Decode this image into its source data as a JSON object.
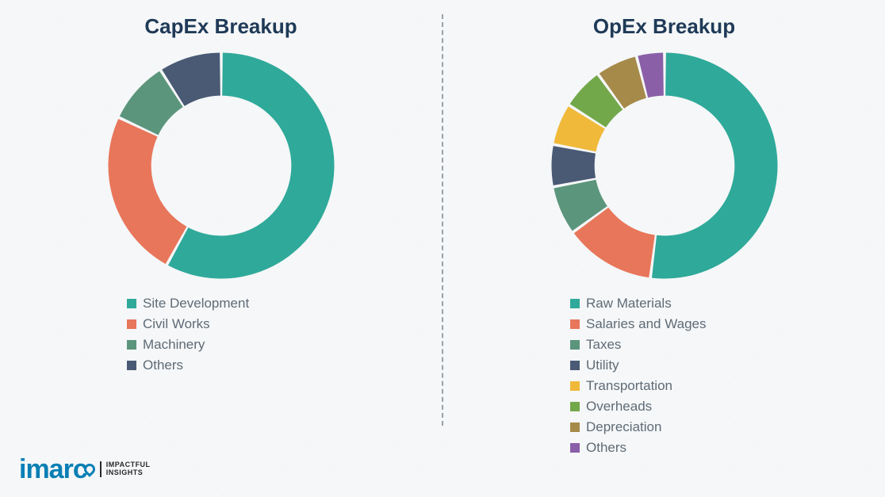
{
  "background_color": "#f5f7f8",
  "divider_color": "#9aa0a6",
  "title_color": "#1f3a57",
  "legend_text_color": "#5f6b76",
  "logo": {
    "mark": "imarc",
    "mark_color": "#0a7fb5",
    "tagline_line1": "IMPACTFUL",
    "tagline_line2": "INSIGHTS",
    "tagline_color": "#2a2a2a"
  },
  "charts": [
    {
      "id": "capex",
      "title": "CapEx Breakup",
      "type": "donut",
      "inner_radius_pct": 62,
      "start_angle_deg": -90,
      "gap_deg": 1.5,
      "segments": [
        {
          "label": "Site Development",
          "value": 58,
          "color": "#2fa99a"
        },
        {
          "label": "Civil Works",
          "value": 24,
          "color": "#e8765a"
        },
        {
          "label": "Machinery",
          "value": 9,
          "color": "#5b957c"
        },
        {
          "label": "Others",
          "value": 9,
          "color": "#4a5a75"
        }
      ]
    },
    {
      "id": "opex",
      "title": "OpEx Breakup",
      "type": "donut",
      "inner_radius_pct": 62,
      "start_angle_deg": -90,
      "gap_deg": 1.5,
      "segments": [
        {
          "label": "Raw Materials",
          "value": 52,
          "color": "#2fa99a"
        },
        {
          "label": "Salaries and Wages",
          "value": 13,
          "color": "#e8765a"
        },
        {
          "label": "Taxes",
          "value": 7,
          "color": "#5b957c"
        },
        {
          "label": "Utility",
          "value": 6,
          "color": "#4a5a75"
        },
        {
          "label": "Transportation",
          "value": 6,
          "color": "#f0b93a"
        },
        {
          "label": "Overheads",
          "value": 6,
          "color": "#73a84a"
        },
        {
          "label": "Depreciation",
          "value": 6,
          "color": "#a68a4a"
        },
        {
          "label": "Others",
          "value": 4,
          "color": "#8a5fa8"
        }
      ]
    }
  ]
}
